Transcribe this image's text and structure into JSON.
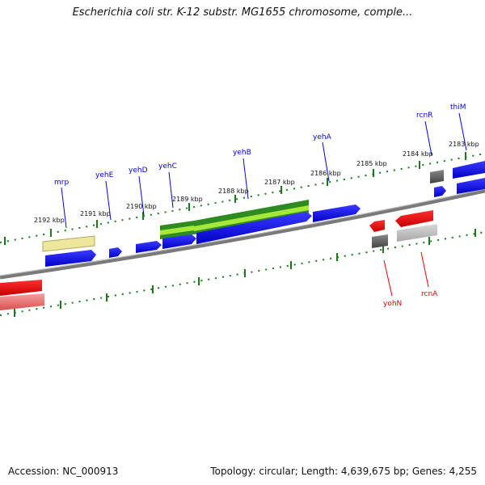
{
  "title": "Escherichia coli str. K-12 substr. MG1655 chromosome, comple...",
  "footer": {
    "accession": "Accession: NC_000913",
    "summary": "Topology: circular; Length: 4,639,675 bp; Genes: 4,255"
  },
  "ticks": [
    "2192 kbp",
    "2191 kbp",
    "2190 kbp",
    "2189 kbp",
    "2188 kbp",
    "2187 kbp",
    "2186 kbp",
    "2185 kbp",
    "2184 kbp",
    "2183 kbp"
  ],
  "genes": {
    "mrp": "mrp",
    "yehE": "yehE",
    "yehD": "yehD",
    "yehC": "yehC",
    "yehB": "yehB",
    "yehA": "yehA",
    "rcnR": "rcnR",
    "thiM": "thiM",
    "yohN": "yohN",
    "rcnA": "rcnA"
  },
  "colors": {
    "forward_gene": "#0000ee",
    "reverse_gene": "#ee0000",
    "cds_green": "#2e8b22",
    "cds_lightgreen": "#a4e83a",
    "cds_yellow": "#ece79a",
    "cds_gray": "#666666",
    "tick_green": "#1a7a1a",
    "backbone": "#808080"
  }
}
